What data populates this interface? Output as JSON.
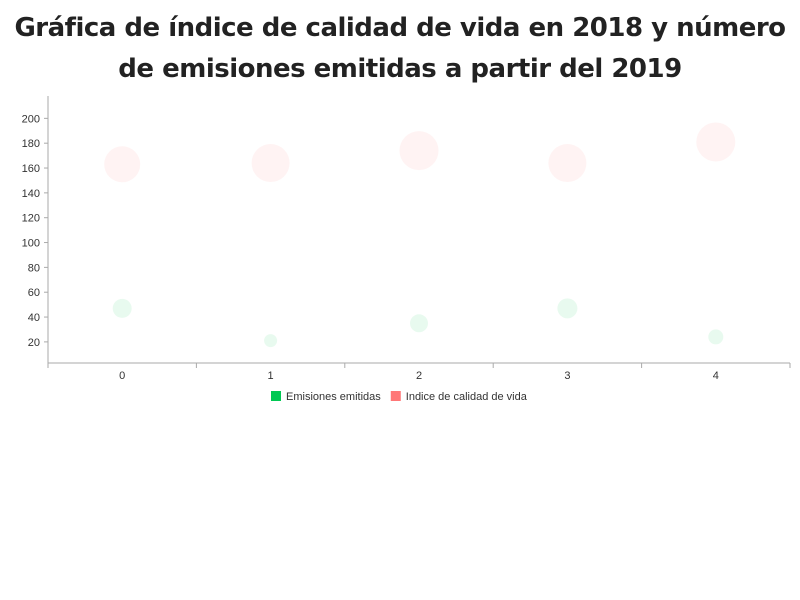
{
  "chart_data": {
    "type": "scatter",
    "title_line1": "Gráfica de índice de calidad de vida en 2018 y número",
    "title_line2": "de emisiones emitidas a partir del 2019",
    "x": [
      0,
      1,
      2,
      3,
      4
    ],
    "x_ticks": [
      "0",
      "1",
      "2",
      "3",
      "4"
    ],
    "y_ticks": [
      "20",
      "40",
      "60",
      "80",
      "100",
      "120",
      "140",
      "160",
      "180",
      "200"
    ],
    "xlim": [
      -0.5,
      4.5
    ],
    "ylim": [
      3,
      218
    ],
    "grid": false,
    "legend_position": "bottom",
    "series": [
      {
        "name": "Emisiones emitidas",
        "color": "#00c853",
        "y": [
          47,
          21,
          35,
          47,
          24
        ],
        "size": [
          9.5,
          6.5,
          9,
          10,
          7.5
        ]
      },
      {
        "name": "Indice de calidad de vida",
        "color": "#ff7777",
        "y": [
          163,
          164,
          174,
          164,
          181
        ],
        "size": [
          18,
          19,
          19.5,
          19,
          19.5
        ]
      }
    ]
  }
}
